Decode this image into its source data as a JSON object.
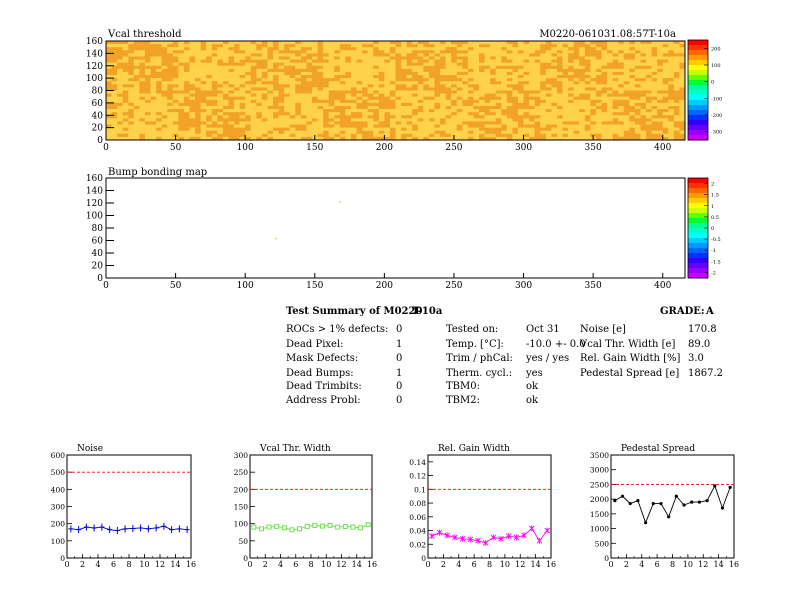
{
  "header": {
    "module_id": "M0220-061031.08:57T-10a"
  },
  "colors": {
    "heat_low": "#FFD24A",
    "heat_high": "#F2A227",
    "noise": "#0000CC",
    "vcal_width": "#66DD44",
    "gain_width": "#FF00FF",
    "pedestal": "#000000",
    "limit_line": "#FF0000"
  },
  "chart_data": [
    {
      "type": "heatmap",
      "title": "Vcal threshold",
      "xlim": [
        0,
        416
      ],
      "ylim": [
        0,
        160
      ],
      "x_ticks": [
        0,
        50,
        100,
        150,
        200,
        250,
        300,
        350,
        400
      ],
      "y_ticks": [
        0,
        20,
        40,
        60,
        80,
        100,
        120,
        140,
        160
      ],
      "roc_blocks_x": 8,
      "roc_blocks_y": 2,
      "palette_labels": [
        "200",
        "100",
        "0",
        "-100",
        "-200",
        "-300"
      ]
    },
    {
      "type": "heatmap",
      "title": "Bump bonding map",
      "xlim": [
        0,
        416
      ],
      "ylim": [
        0,
        160
      ],
      "x_ticks": [
        0,
        50,
        100,
        150,
        200,
        250,
        300,
        350,
        400
      ],
      "y_ticks": [
        0,
        20,
        40,
        60,
        80,
        100,
        120,
        140,
        160
      ],
      "points": [
        [
          168,
          122
        ],
        [
          122,
          63
        ]
      ],
      "palette_labels": [
        "2",
        "1.5",
        "1",
        "0.5",
        "0",
        "-0.5",
        "-1",
        "-1.5",
        "-2"
      ]
    },
    {
      "type": "line",
      "title": "Noise",
      "x": [
        0,
        1,
        2,
        3,
        4,
        5,
        6,
        7,
        8,
        9,
        10,
        11,
        12,
        13,
        14,
        15
      ],
      "values": [
        170,
        165,
        180,
        175,
        180,
        165,
        160,
        170,
        172,
        175,
        170,
        175,
        185,
        165,
        170,
        165
      ],
      "limit": 500,
      "xlim": [
        0,
        16
      ],
      "ylim": [
        0,
        600
      ],
      "x_ticks": [
        0,
        2,
        4,
        6,
        8,
        10,
        12,
        14,
        16
      ],
      "y_ticks": [
        0,
        100,
        200,
        300,
        400,
        500,
        600
      ],
      "marker": "cross"
    },
    {
      "type": "line",
      "title": "Vcal Thr. Width",
      "x": [
        0,
        1,
        2,
        3,
        4,
        5,
        6,
        7,
        8,
        9,
        10,
        11,
        12,
        13,
        14,
        15
      ],
      "values": [
        90,
        85,
        90,
        92,
        88,
        82,
        85,
        92,
        95,
        93,
        95,
        90,
        92,
        90,
        88,
        97
      ],
      "limit": 200,
      "xlim": [
        0,
        16
      ],
      "ylim": [
        0,
        300
      ],
      "x_ticks": [
        0,
        2,
        4,
        6,
        8,
        10,
        12,
        14,
        16
      ],
      "y_ticks": [
        0,
        50,
        100,
        150,
        200,
        250,
        300
      ],
      "marker": "square"
    },
    {
      "type": "line",
      "title": "Rel. Gain Width",
      "x": [
        0,
        1,
        2,
        3,
        4,
        5,
        6,
        7,
        8,
        9,
        10,
        11,
        12,
        13,
        14,
        15
      ],
      "values": [
        0.032,
        0.037,
        0.033,
        0.03,
        0.028,
        0.027,
        0.025,
        0.022,
        0.03,
        0.028,
        0.032,
        0.03,
        0.033,
        0.043,
        0.025,
        0.04
      ],
      "limit": 0.1,
      "xlim": [
        0,
        16
      ],
      "ylim": [
        0,
        0.15
      ],
      "x_ticks": [
        0,
        2,
        4,
        6,
        8,
        10,
        12,
        14,
        16
      ],
      "y_ticks": [
        0,
        0.02,
        0.04,
        0.06,
        0.08,
        0.1,
        0.12,
        0.14
      ],
      "y_tick_labels": [
        "0",
        "0.02",
        "0.04",
        "0.06",
        "0.08",
        "0.1",
        "0.12",
        "0.14"
      ],
      "marker": "star"
    },
    {
      "type": "line",
      "title": "Pedestal Spread",
      "x": [
        0,
        1,
        2,
        3,
        4,
        5,
        6,
        7,
        8,
        9,
        10,
        11,
        12,
        13,
        14,
        15
      ],
      "values": [
        1950,
        2100,
        1850,
        1950,
        1200,
        1850,
        1850,
        1400,
        2100,
        1800,
        1900,
        1900,
        1950,
        2450,
        1700,
        2400
      ],
      "limit": 2500,
      "xlim": [
        0,
        16
      ],
      "ylim": [
        0,
        3500
      ],
      "x_ticks": [
        0,
        2,
        4,
        6,
        8,
        10,
        12,
        14,
        16
      ],
      "y_ticks": [
        0,
        500,
        1000,
        1500,
        2000,
        2500,
        3000,
        3500
      ],
      "marker": "dot"
    }
  ],
  "summary": {
    "title": "Test Summary of M0220",
    "tag": "T-10a",
    "grade_label": "GRADE:",
    "grade_value": "A",
    "col1": [
      {
        "label": "ROCs > 1% defects:",
        "value": "0"
      },
      {
        "label": "Dead Pixel:",
        "value": "1"
      },
      {
        "label": "Mask Defects:",
        "value": "0"
      },
      {
        "label": "Dead Bumps:",
        "value": "1"
      },
      {
        "label": "Dead Trimbits:",
        "value": "0"
      },
      {
        "label": "Address Probl:",
        "value": "0"
      }
    ],
    "col2": [
      {
        "label": "Tested on:",
        "value": "Oct 31"
      },
      {
        "label": "Temp. [°C]:",
        "value": "-10.0 +- 0.0"
      },
      {
        "label": "Trim / phCal:",
        "value": "yes / yes"
      },
      {
        "label": "Therm. cycl.:",
        "value": "yes"
      },
      {
        "label": "TBM0:",
        "value": "ok"
      },
      {
        "label": "TBM2:",
        "value": "ok"
      }
    ],
    "col3": [
      {
        "label": "Noise [e]",
        "value": "170.8"
      },
      {
        "label": "Vcal Thr. Width [e]",
        "value": "89.0"
      },
      {
        "label": "Rel. Gain Width [%]",
        "value": "3.0"
      },
      {
        "label": "Pedestal Spread [e]",
        "value": "1867.2"
      }
    ]
  }
}
